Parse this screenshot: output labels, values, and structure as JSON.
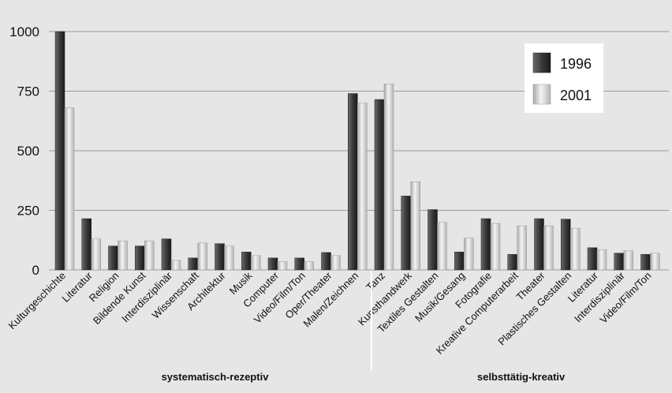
{
  "colors": {
    "background": "#e6e6e6",
    "grid": "#9a9a9a",
    "legend_bg": "#ffffff",
    "series_1996": "#3a3a3a",
    "series_2001": "#d4d4d4"
  },
  "chart_data": {
    "type": "bar",
    "title": "",
    "xlabel": "",
    "ylabel": "",
    "ylim": [
      0,
      1000
    ],
    "yticks": [
      0,
      250,
      500,
      750,
      1000
    ],
    "grid": true,
    "legend_position": "top-right",
    "categories": [
      "Kulturgeschichte",
      "Literatur",
      "Religion",
      "Bildende Kunst",
      "Interdisziplinär",
      "Wissenschaft",
      "Architektur",
      "Musik",
      "Computer",
      "Video/Film/Ton",
      "Oper/Theater",
      "Malen/Zeichnen",
      "Tanz",
      "Kunsthandwerk",
      "Textiles Gestalten",
      "Musik/Gesang",
      "Fotografie",
      "Kreative Computerarbeit",
      "Theater",
      "Plastisches Gestalten",
      "Literatur",
      "Interdisziplinär",
      "Video/Film/Ton"
    ],
    "groups": [
      {
        "label": "systematisch-rezeptiv",
        "start": 0,
        "end": 12
      },
      {
        "label": "selbsttätig-kreativ",
        "start": 12,
        "end": 23
      }
    ],
    "series": [
      {
        "name": "1996",
        "values": [
          1000,
          215,
          100,
          100,
          130,
          50,
          110,
          75,
          50,
          50,
          73,
          740,
          715,
          310,
          253,
          75,
          215,
          65,
          215,
          213,
          93,
          70,
          65
        ]
      },
      {
        "name": "2001",
        "values": [
          680,
          130,
          122,
          122,
          40,
          113,
          100,
          60,
          35,
          35,
          60,
          700,
          780,
          370,
          200,
          133,
          195,
          185,
          185,
          175,
          85,
          80,
          70
        ]
      }
    ]
  }
}
